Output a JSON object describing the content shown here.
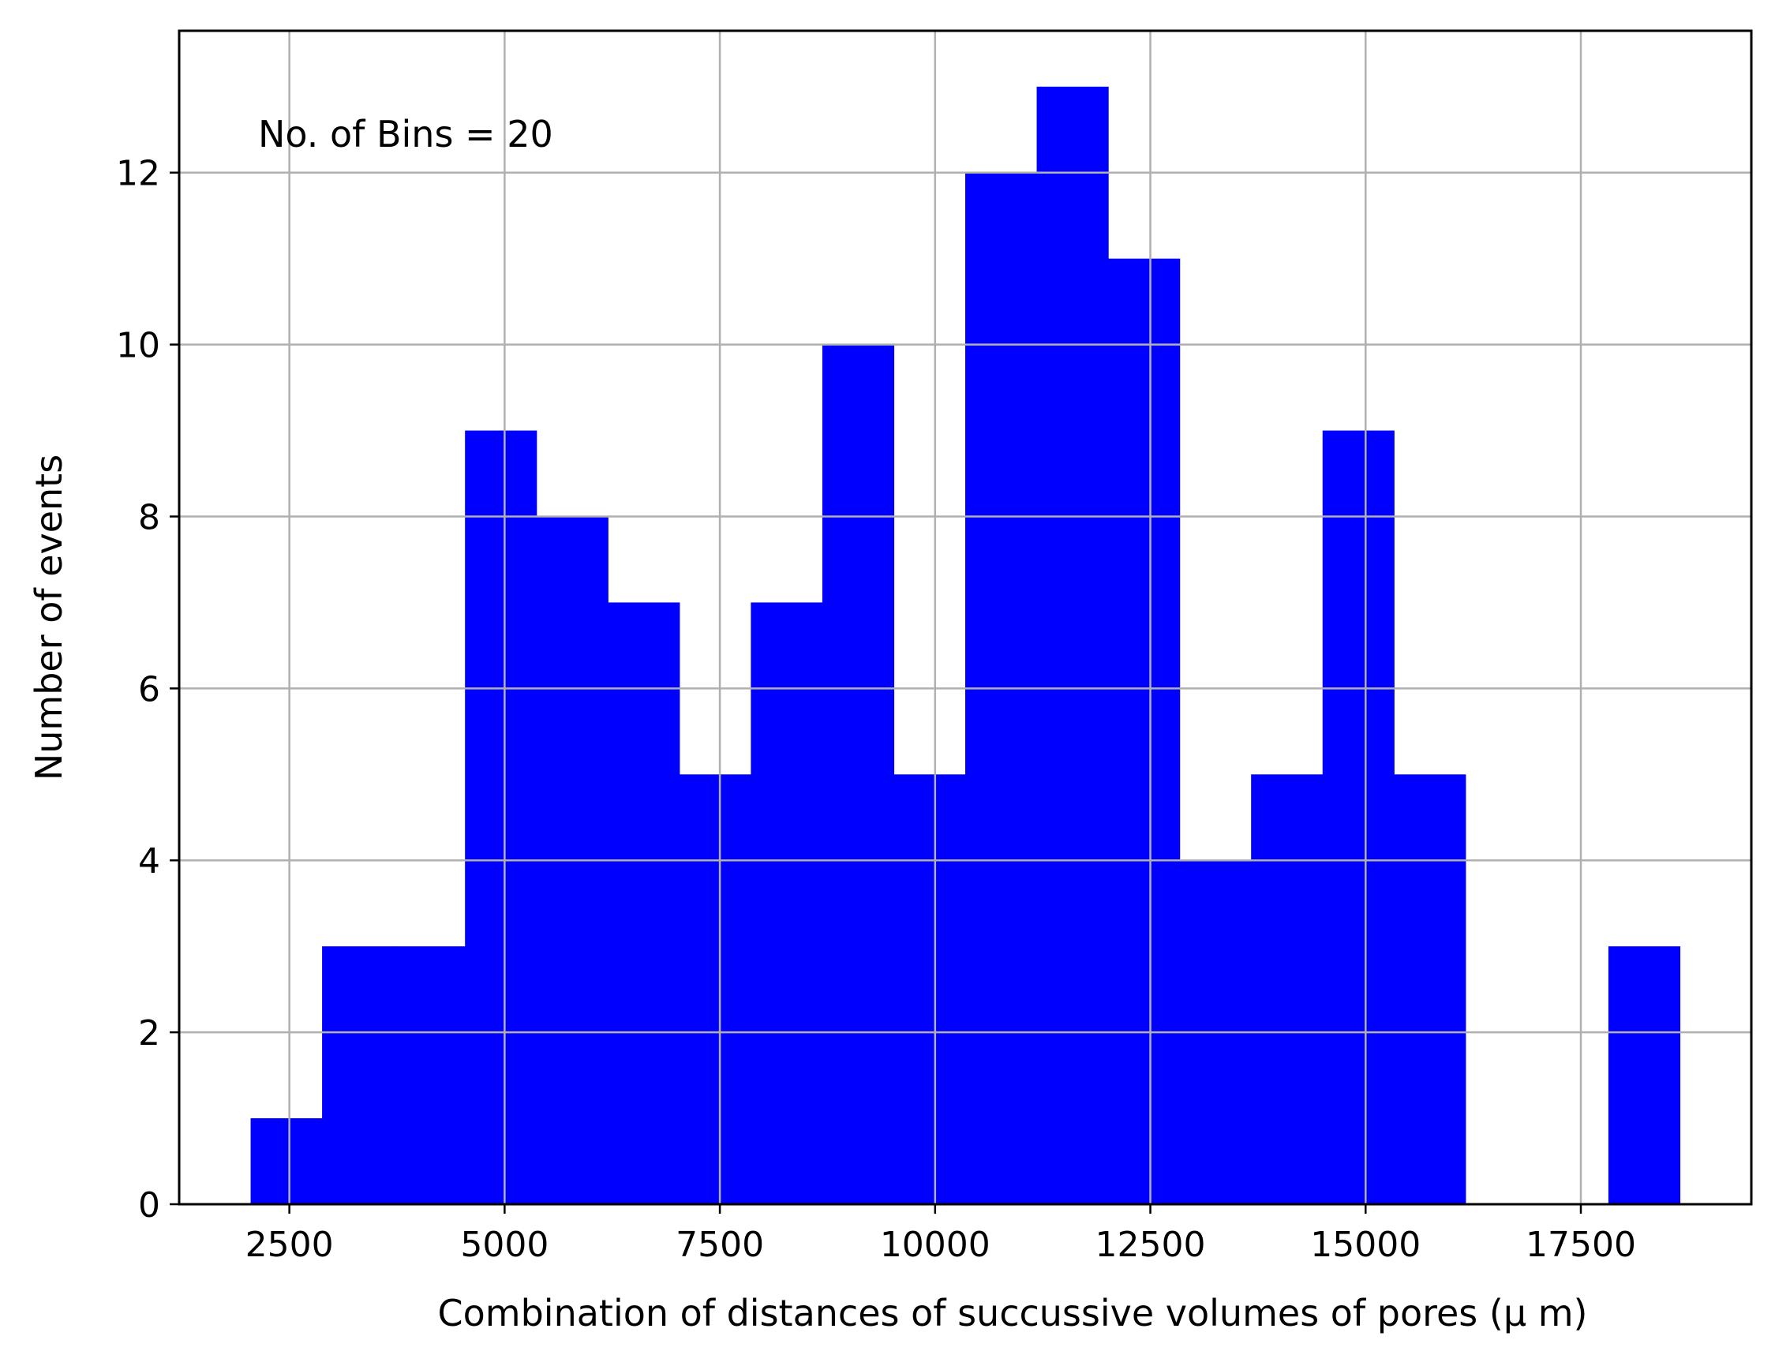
{
  "chart_data": {
    "type": "bar",
    "subtype": "histogram",
    "bins": 20,
    "bin_edges": [
      2050,
      2880,
      3710,
      4540,
      5370,
      6200,
      7030,
      7860,
      8690,
      9520,
      10350,
      11180,
      12010,
      12840,
      13670,
      14500,
      15330,
      16160,
      16990,
      17820,
      18650
    ],
    "values": [
      1,
      3,
      3,
      9,
      8,
      7,
      5,
      7,
      10,
      5,
      12,
      13,
      11,
      4,
      5,
      9,
      5,
      0,
      0,
      3
    ],
    "xlabel": "Combination of distances of succussive volumes of pores  (μ m)",
    "ylabel": "Number of events",
    "annotation": "No. of Bins = 20",
    "xlim": [
      1220,
      19480
    ],
    "ylim": [
      0,
      13.65
    ],
    "xticks": [
      2500,
      5000,
      7500,
      10000,
      12500,
      15000,
      17500
    ],
    "yticks": [
      0,
      2,
      4,
      6,
      8,
      10,
      12
    ],
    "grid": true,
    "bar_color": "#0000ff",
    "grid_color": "#b0b0b0"
  }
}
